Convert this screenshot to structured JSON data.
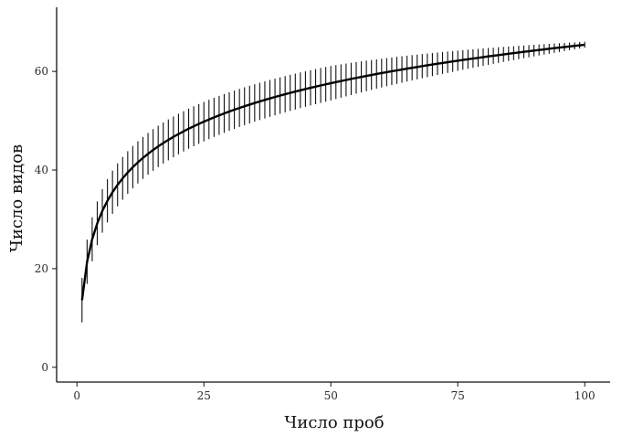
{
  "chart_data": {
    "type": "line",
    "title": "",
    "xlabel": "Число проб",
    "ylabel": "Число видов",
    "xlim": [
      -4,
      105
    ],
    "ylim": [
      -3,
      73
    ],
    "xticks": [
      0,
      25,
      50,
      75,
      100
    ],
    "yticks": [
      0,
      20,
      40,
      60
    ],
    "grid": false,
    "legend": "none",
    "curve_model": {
      "a": 13.6,
      "b": 11.25
    },
    "error_band": {
      "half_width_start": 4.5,
      "half_width_mid": 3.5,
      "half_width_end": 0.6
    },
    "n_points": 100,
    "sample_points": [
      {
        "x": 1,
        "y": 13.6
      },
      {
        "x": 2,
        "y": 21.4
      },
      {
        "x": 5,
        "y": 31.7
      },
      {
        "x": 10,
        "y": 39.5
      },
      {
        "x": 20,
        "y": 47.3
      },
      {
        "x": 25,
        "y": 49.8
      },
      {
        "x": 50,
        "y": 57.6
      },
      {
        "x": 75,
        "y": 62.2
      },
      {
        "x": 100,
        "y": 65.4
      }
    ],
    "colors": {
      "line": "#000000",
      "axis": "#111111"
    }
  }
}
